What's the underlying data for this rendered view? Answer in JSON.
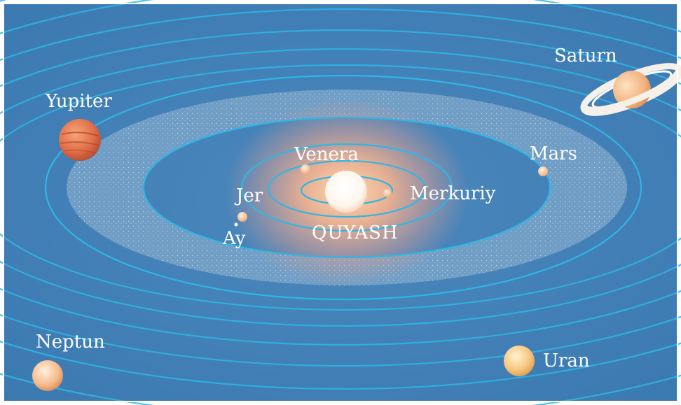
{
  "sun": {
    "label": "QUYASH"
  },
  "planets": {
    "mercury": "Merkuriy",
    "venus": "Venera",
    "earth": "Jer",
    "moon": "Ay",
    "mars": "Mars",
    "jupiter": "Yupiter",
    "saturn": "Saturn",
    "uranus": "Uran",
    "neptune": "Neptun"
  },
  "colors": {
    "space": "#3d7db5",
    "orbit": "#2fb6e6",
    "belt": "#8fb4d0",
    "sun_glow": "#f7a98c",
    "label": "#ffffff"
  }
}
